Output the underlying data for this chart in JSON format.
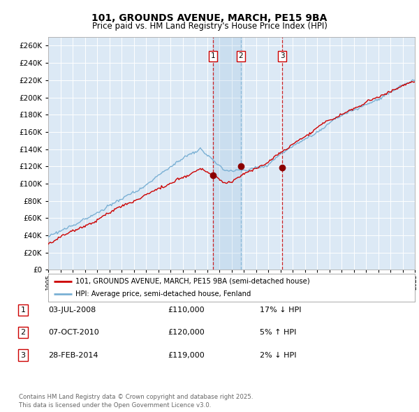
{
  "title": "101, GROUNDS AVENUE, MARCH, PE15 9BA",
  "subtitle": "Price paid vs. HM Land Registry's House Price Index (HPI)",
  "title_fontsize": 10,
  "subtitle_fontsize": 8.5,
  "background_color": "#ffffff",
  "plot_bg_color": "#dce9f5",
  "grid_color": "#ffffff",
  "ylabel_values": [
    0,
    20000,
    40000,
    60000,
    80000,
    100000,
    120000,
    140000,
    160000,
    180000,
    200000,
    220000,
    240000,
    260000
  ],
  "ylim": [
    0,
    270000
  ],
  "xlim_year": [
    1995,
    2025
  ],
  "sale1_year": 2008.5,
  "sale1_price": 110000,
  "sale2_year": 2010.77,
  "sale2_price": 120000,
  "sale3_year": 2014.15,
  "sale3_price": 119000,
  "hpi_color": "#7ab0d4",
  "price_color": "#cc0000",
  "dot_color": "#8b0000",
  "legend_label1": "101, GROUNDS AVENUE, MARCH, PE15 9BA (semi-detached house)",
  "legend_label2": "HPI: Average price, semi-detached house, Fenland",
  "footnote": "Contains HM Land Registry data © Crown copyright and database right 2025.\nThis data is licensed under the Open Government Licence v3.0.",
  "table": [
    {
      "num": "1",
      "date": "03-JUL-2008",
      "price": "£110,000",
      "hpi": "17% ↓ HPI"
    },
    {
      "num": "2",
      "date": "07-OCT-2010",
      "price": "£120,000",
      "hpi": "5% ↑ HPI"
    },
    {
      "num": "3",
      "date": "28-FEB-2014",
      "price": "£119,000",
      "hpi": "2% ↓ HPI"
    }
  ]
}
